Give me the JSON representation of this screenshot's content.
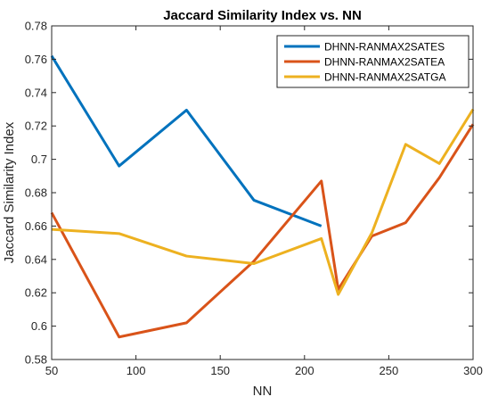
{
  "chart_data": {
    "type": "line",
    "title": "Jaccard Similarity Index vs. NN",
    "xlabel": "NN",
    "ylabel": "Jaccard Similarity Index",
    "xlim": [
      50,
      300
    ],
    "ylim": [
      0.58,
      0.78
    ],
    "xticks": [
      50,
      100,
      150,
      200,
      250,
      300
    ],
    "yticks": [
      0.58,
      0.6,
      0.62,
      0.64,
      0.66,
      0.68,
      0.7,
      0.72,
      0.74,
      0.76,
      0.78
    ],
    "xtick_labels": [
      "50",
      "100",
      "150",
      "200",
      "250",
      "300"
    ],
    "ytick_labels": [
      "0.58",
      "0.6",
      "0.62",
      "0.64",
      "0.66",
      "0.68",
      "0.7",
      "0.72",
      "0.74",
      "0.76",
      "0.78"
    ],
    "grid": false,
    "legend_position": "top-right",
    "series": [
      {
        "name": "DHNN-RANMAX2SATES",
        "color": "#0072BD",
        "x": [
          50,
          90,
          130,
          170,
          210
        ],
        "y": [
          0.762,
          0.696,
          0.7295,
          0.6755,
          0.66
        ]
      },
      {
        "name": "DHNN-RANMAX2SATEA",
        "color": "#D95319",
        "x": [
          50,
          90,
          130,
          170,
          210,
          220,
          240,
          260,
          280,
          300
        ],
        "y": [
          0.668,
          0.5935,
          0.602,
          0.639,
          0.687,
          0.622,
          0.654,
          0.662,
          0.689,
          0.721
        ]
      },
      {
        "name": "DHNN-RANMAX2SATGA",
        "color": "#EDB120",
        "x": [
          50,
          90,
          130,
          170,
          210,
          220,
          240,
          260,
          280,
          300
        ],
        "y": [
          0.658,
          0.6555,
          0.642,
          0.6375,
          0.6525,
          0.619,
          0.656,
          0.709,
          0.6975,
          0.73
        ]
      }
    ]
  }
}
